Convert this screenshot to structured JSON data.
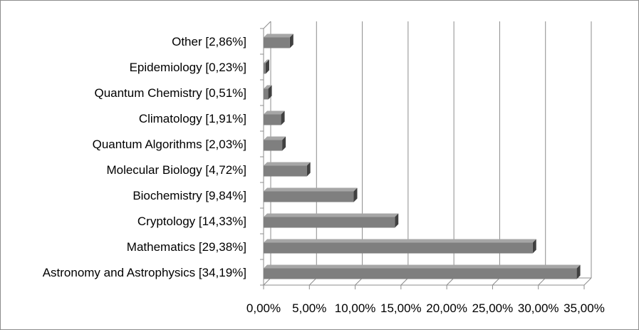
{
  "chart_data": {
    "type": "bar",
    "orientation": "horizontal",
    "style": "3d",
    "categories": [
      "Astronomy and Astrophysics [34,19%]",
      "Mathematics [29,38%]",
      "Cryptology [14,33%]",
      "Biochemistry [9,84%]",
      "Molecular Biology [4,72%]",
      "Quantum Algorithms [2,03%]",
      "Climatology [1,91%]",
      "Quantum Chemistry [0,51%]",
      "Epidemiology [0,23%]",
      "Other [2,86%]"
    ],
    "values": [
      34.19,
      29.38,
      14.33,
      9.84,
      4.72,
      2.03,
      1.91,
      0.51,
      0.23,
      2.86
    ],
    "xlim": [
      0,
      35
    ],
    "xticks": [
      0,
      5,
      10,
      15,
      20,
      25,
      30,
      35
    ],
    "xtick_labels": [
      "0,00%",
      "5,00%",
      "10,00%",
      "15,00%",
      "20,00%",
      "25,00%",
      "30,00%",
      "35,00%"
    ],
    "grid": true,
    "legend": "none",
    "colors": {
      "bar_front": "#7f7f7f",
      "bar_top": "#a6a6a6",
      "bar_side": "#404040",
      "grid": "#8c8c8c"
    }
  }
}
